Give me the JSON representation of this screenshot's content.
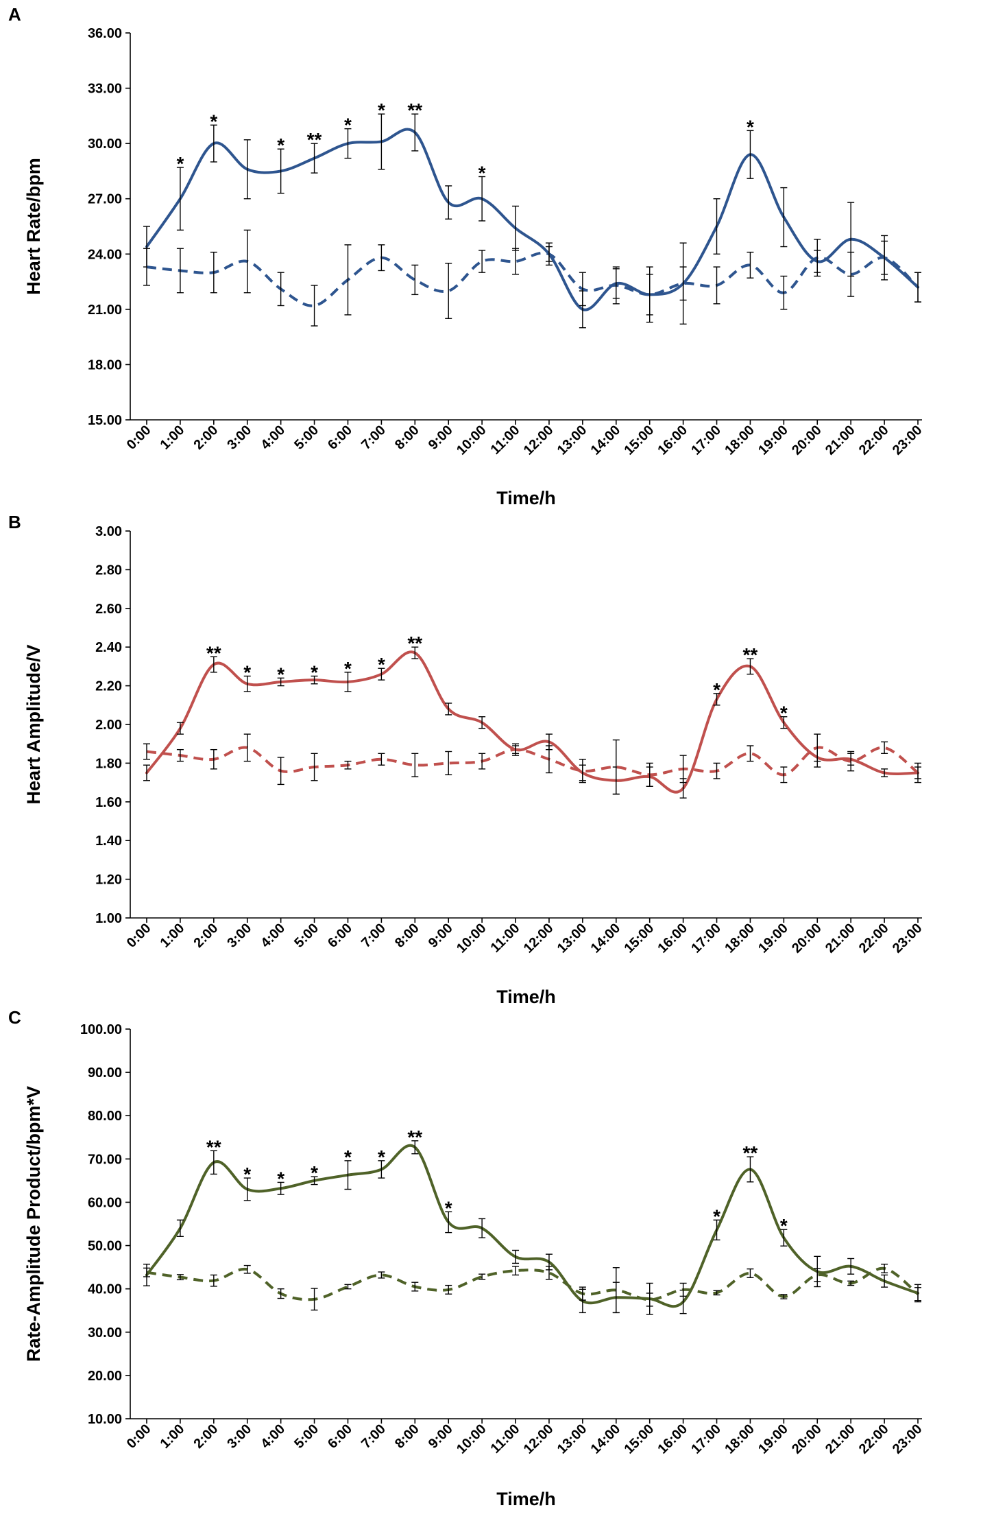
{
  "x_categories": [
    "0:00",
    "1:00",
    "2:00",
    "3:00",
    "4:00",
    "5:00",
    "6:00",
    "7:00",
    "8:00",
    "9:00",
    "10:00",
    "11:00",
    "12:00",
    "13:00",
    "14:00",
    "15:00",
    "16:00",
    "17:00",
    "18:00",
    "19:00",
    "20:00",
    "21:00",
    "22:00",
    "23:00"
  ],
  "chart_data": [
    {
      "panel": "A",
      "type": "line",
      "color": "#2e558f",
      "xlabel": "Time/h",
      "ylabel": "Heart Rate/bpm",
      "ylim": [
        15,
        36
      ],
      "yticks": [
        "15.00",
        "18.00",
        "21.00",
        "24.00",
        "27.00",
        "30.00",
        "33.00",
        "36.00"
      ],
      "series": [
        {
          "name": "solid",
          "style": "solid",
          "values": [
            24.4,
            27.0,
            30.0,
            28.6,
            28.5,
            29.2,
            30.0,
            30.1,
            30.6,
            26.8,
            27.0,
            25.4,
            24.0,
            21.0,
            22.4,
            21.8,
            22.4,
            25.5,
            29.4,
            26.0,
            23.6,
            24.8,
            23.8,
            22.2
          ],
          "errors": [
            1.1,
            1.7,
            1.0,
            1.6,
            1.2,
            0.8,
            0.8,
            1.5,
            1.0,
            0.9,
            1.2,
            1.2,
            0.6,
            1.0,
            0.8,
            1.5,
            2.2,
            1.5,
            1.3,
            1.6,
            0.6,
            2.0,
            1.2,
            0.8
          ]
        },
        {
          "name": "dashed",
          "style": "dashed",
          "values": [
            23.3,
            23.1,
            23.0,
            23.6,
            22.1,
            21.2,
            22.6,
            23.8,
            22.6,
            22.0,
            23.6,
            23.6,
            24.0,
            22.1,
            22.3,
            21.8,
            22.4,
            22.3,
            23.4,
            21.9,
            23.8,
            22.9,
            23.8,
            22.2
          ],
          "errors": [
            1.0,
            1.2,
            1.1,
            1.7,
            0.9,
            1.1,
            1.9,
            0.7,
            0.8,
            1.5,
            0.6,
            0.7,
            0.4,
            0.9,
            1.0,
            1.1,
            0.9,
            1.0,
            0.7,
            0.9,
            1.0,
            1.2,
            0.9,
            0.8
          ]
        }
      ],
      "significance": [
        {
          "x": "1:00",
          "label": "*"
        },
        {
          "x": "2:00",
          "label": "*"
        },
        {
          "x": "4:00",
          "label": "*"
        },
        {
          "x": "5:00",
          "label": "**"
        },
        {
          "x": "6:00",
          "label": "*"
        },
        {
          "x": "7:00",
          "label": "*"
        },
        {
          "x": "8:00",
          "label": "**"
        },
        {
          "x": "10:00",
          "label": "*"
        },
        {
          "x": "18:00",
          "label": "*"
        }
      ]
    },
    {
      "panel": "B",
      "type": "line",
      "color": "#c0504d",
      "xlabel": "Time/h",
      "ylabel": "Heart Amplitude/V",
      "ylim": [
        1.0,
        3.0
      ],
      "yticks": [
        "1.00",
        "1.20",
        "1.40",
        "1.60",
        "1.80",
        "2.00",
        "2.20",
        "2.40",
        "2.60",
        "2.80",
        "3.00"
      ],
      "series": [
        {
          "name": "solid",
          "style": "solid",
          "values": [
            1.75,
            1.98,
            2.31,
            2.21,
            2.22,
            2.23,
            2.22,
            2.26,
            2.37,
            2.08,
            2.01,
            1.87,
            1.91,
            1.75,
            1.71,
            1.73,
            1.67,
            2.13,
            2.3,
            2.01,
            1.83,
            1.82,
            1.75,
            1.75
          ],
          "errors": [
            0.04,
            0.03,
            0.04,
            0.04,
            0.02,
            0.02,
            0.05,
            0.03,
            0.03,
            0.03,
            0.03,
            0.02,
            0.04,
            0.04,
            0.07,
            0.05,
            0.05,
            0.03,
            0.04,
            0.03,
            0.05,
            0.03,
            0.02,
            0.03
          ]
        },
        {
          "name": "dashed",
          "style": "dashed",
          "values": [
            1.86,
            1.84,
            1.82,
            1.88,
            1.76,
            1.78,
            1.79,
            1.82,
            1.79,
            1.8,
            1.81,
            1.87,
            1.82,
            1.76,
            1.78,
            1.74,
            1.77,
            1.76,
            1.85,
            1.74,
            1.88,
            1.81,
            1.88,
            1.75
          ],
          "errors": [
            0.04,
            0.03,
            0.05,
            0.07,
            0.07,
            0.07,
            0.02,
            0.03,
            0.06,
            0.06,
            0.04,
            0.03,
            0.07,
            0.06,
            0.14,
            0.06,
            0.07,
            0.04,
            0.04,
            0.04,
            0.07,
            0.05,
            0.03,
            0.05
          ]
        }
      ],
      "significance": [
        {
          "x": "2:00",
          "label": "**"
        },
        {
          "x": "3:00",
          "label": "*"
        },
        {
          "x": "4:00",
          "label": "*"
        },
        {
          "x": "5:00",
          "label": "*"
        },
        {
          "x": "6:00",
          "label": "*"
        },
        {
          "x": "7:00",
          "label": "*"
        },
        {
          "x": "8:00",
          "label": "**"
        },
        {
          "x": "17:00",
          "label": "*"
        },
        {
          "x": "18:00",
          "label": "**"
        },
        {
          "x": "19:00",
          "label": "*"
        }
      ]
    },
    {
      "panel": "C",
      "type": "line",
      "color": "#4f6228",
      "xlabel": "Time/h",
      "ylabel": "Rate-Amplitude Product/bpm*V",
      "ylim": [
        10,
        100
      ],
      "yticks": [
        "10.00",
        "20.00",
        "30.00",
        "40.00",
        "50.00",
        "60.00",
        "70.00",
        "80.00",
        "90.00",
        "100.00"
      ],
      "series": [
        {
          "name": "solid",
          "style": "solid",
          "values": [
            43.2,
            54.0,
            69.2,
            63.0,
            63.2,
            65.0,
            66.3,
            67.6,
            72.7,
            55.4,
            54.0,
            47.4,
            46.2,
            37.2,
            38.0,
            37.7,
            37.0,
            53.6,
            67.6,
            51.8,
            44.0,
            45.2,
            41.8,
            39.0
          ],
          "errors": [
            2.5,
            1.9,
            2.7,
            2.6,
            1.4,
            0.9,
            3.3,
            2.0,
            1.5,
            2.4,
            2.2,
            1.5,
            1.8,
            2.7,
            3.5,
            3.6,
            2.7,
            2.3,
            2.9,
            1.9,
            3.5,
            1.8,
            1.4,
            2.0
          ]
        },
        {
          "name": "dashed",
          "style": "dashed",
          "values": [
            43.8,
            42.7,
            41.9,
            44.5,
            38.9,
            37.6,
            40.5,
            43.2,
            40.5,
            39.8,
            42.8,
            44.2,
            43.7,
            38.9,
            39.7,
            37.5,
            39.8,
            39.1,
            43.6,
            38.2,
            43.2,
            41.3,
            44.7,
            38.8
          ],
          "errors": [
            1.0,
            0.6,
            1.3,
            0.9,
            1.1,
            2.5,
            0.5,
            0.7,
            1.0,
            1.0,
            0.6,
            1.0,
            1.5,
            1.5,
            5.2,
            1.5,
            1.5,
            0.5,
            1.0,
            0.5,
            1.5,
            0.5,
            1.0,
            1.5
          ]
        }
      ],
      "significance": [
        {
          "x": "2:00",
          "label": "**"
        },
        {
          "x": "3:00",
          "label": "*"
        },
        {
          "x": "4:00",
          "label": "*"
        },
        {
          "x": "5:00",
          "label": "*"
        },
        {
          "x": "6:00",
          "label": "*"
        },
        {
          "x": "7:00",
          "label": "*"
        },
        {
          "x": "8:00",
          "label": "**"
        },
        {
          "x": "9:00",
          "label": "*"
        },
        {
          "x": "17:00",
          "label": "*"
        },
        {
          "x": "18:00",
          "label": "**"
        },
        {
          "x": "19:00",
          "label": "*"
        }
      ]
    }
  ]
}
